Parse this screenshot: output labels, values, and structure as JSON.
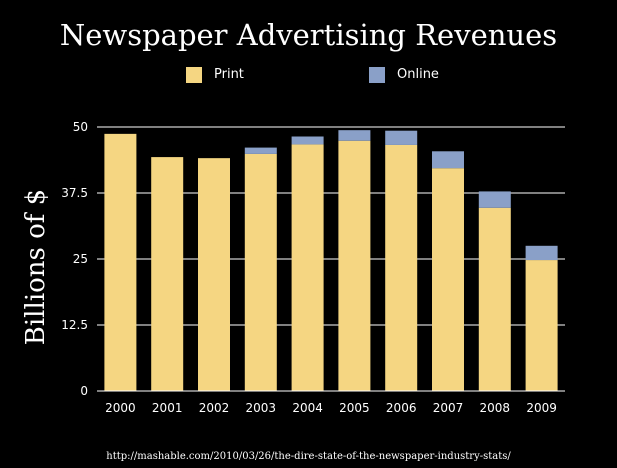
{
  "chart_data": {
    "type": "bar",
    "stacked": true,
    "title": "Newspaper Advertising Revenues",
    "ylabel": "Billions of $",
    "xlabel": "",
    "categories": [
      "2000",
      "2001",
      "2002",
      "2003",
      "2004",
      "2005",
      "2006",
      "2007",
      "2008",
      "2009"
    ],
    "series": [
      {
        "name": "Print",
        "color": "#f5d682",
        "values": [
          48.7,
          44.3,
          44.1,
          44.9,
          46.7,
          47.4,
          46.6,
          42.2,
          34.7,
          24.8
        ]
      },
      {
        "name": "Online",
        "color": "#8aa0c8",
        "values": [
          0,
          0,
          0,
          1.2,
          1.5,
          2.0,
          2.7,
          3.2,
          3.1,
          2.7
        ]
      }
    ],
    "ylim": [
      0,
      50
    ],
    "yticks": [
      0,
      12.5,
      25,
      37.5,
      50
    ],
    "ytick_labels": [
      "0",
      "12.5",
      "25",
      "37.5",
      "50"
    ],
    "grid": true,
    "legend_position": "top"
  },
  "source_note": "http://mashable.com/2010/03/26/the-dire-state-of-the-newspaper-industry-stats/"
}
